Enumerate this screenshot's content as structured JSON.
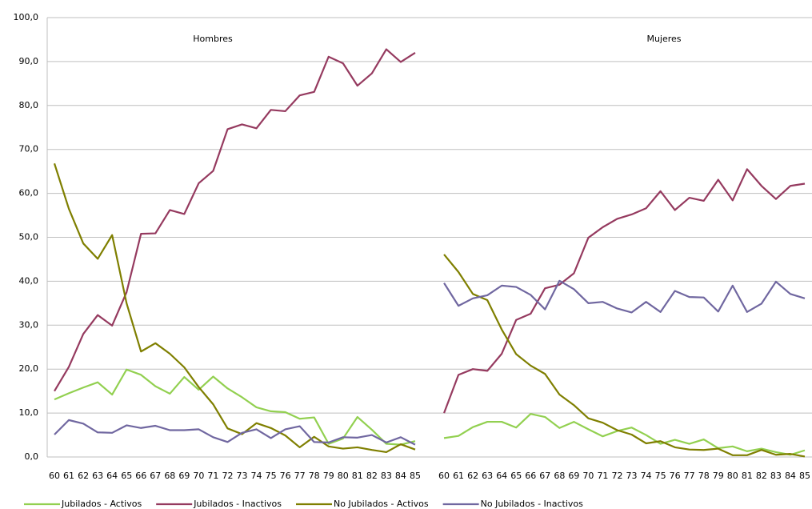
{
  "chart_data": {
    "type": "line",
    "categories": [
      "60",
      "61",
      "62",
      "63",
      "64",
      "65",
      "66",
      "67",
      "68",
      "69",
      "70",
      "71",
      "72",
      "73",
      "74",
      "75",
      "76",
      "77",
      "78",
      "79",
      "80",
      "81",
      "82",
      "83",
      "84",
      "85",
      null,
      "60",
      "61",
      "62",
      "63",
      "64",
      "65",
      "66",
      "67",
      "68",
      "69",
      "70",
      "71",
      "72",
      "73",
      "74",
      "75",
      "76",
      "77",
      "78",
      "79",
      "80",
      "81",
      "82",
      "83",
      "84",
      "85"
    ],
    "annotations": [
      "Hombres",
      "Mujeres"
    ],
    "ylim": [
      0,
      100
    ],
    "yticks": [
      {
        "value": 0,
        "label": "0,0"
      },
      {
        "value": 10,
        "label": "10,0"
      },
      {
        "value": 20,
        "label": "20,0"
      },
      {
        "value": 30,
        "label": "30,0"
      },
      {
        "value": 40,
        "label": "40,0"
      },
      {
        "value": 50,
        "label": "50,0"
      },
      {
        "value": 60,
        "label": "60,0"
      },
      {
        "value": 70,
        "label": "70,0"
      },
      {
        "value": 80,
        "label": "80,0"
      },
      {
        "value": 90,
        "label": "90,0"
      },
      {
        "value": 100,
        "label": "100,0"
      }
    ],
    "grid": true,
    "legend": "bottom",
    "series": [
      {
        "name": "Jubilados - Activos",
        "color": "#92d050",
        "values": [
          13.1,
          14.5,
          15.8,
          17,
          14.2,
          19.9,
          18.7,
          16.1,
          14.4,
          18.2,
          15.3,
          18.3,
          15.6,
          13.6,
          11.3,
          10.4,
          10.2,
          8.7,
          9,
          3,
          4.2,
          9.1,
          6.2,
          3,
          2.8,
          3.6,
          null,
          4.3,
          4.8,
          6.8,
          8,
          8,
          6.7,
          9.8,
          9.1,
          6.6,
          8,
          6.3,
          4.7,
          5.9,
          6.7,
          5,
          3,
          3.9,
          3,
          4,
          2,
          2.4,
          1.3,
          1.9,
          1.1,
          0.5,
          1.5
        ]
      },
      {
        "name": "Jubilados - Inactivos",
        "color": "#953a5f",
        "values": [
          15,
          20.5,
          28,
          32.3,
          29.9,
          37.5,
          50.8,
          50.9,
          56.2,
          55.3,
          62.3,
          65.1,
          74.6,
          75.7,
          74.8,
          79,
          78.7,
          82.3,
          83.1,
          91.1,
          89.6,
          84.5,
          87.3,
          92.8,
          89.9,
          92,
          null,
          10,
          18.7,
          20,
          19.6,
          23.5,
          31.2,
          32.6,
          38.4,
          39.2,
          41.8,
          49.9,
          52.3,
          54.2,
          55.2,
          56.6,
          60.5,
          56.2,
          59,
          58.3,
          63.1,
          58.4,
          65.5,
          61.7,
          58.7,
          61.7,
          62.2
        ]
      },
      {
        "name": "No Jubilados - Activos",
        "color": "#7f7f00",
        "values": [
          66.8,
          56.5,
          48.6,
          45.1,
          50.5,
          35,
          24,
          25.9,
          23.5,
          20.4,
          15.9,
          12,
          6.5,
          5.2,
          7.7,
          6.6,
          4.9,
          2.2,
          4.6,
          2.4,
          1.9,
          2.2,
          1.6,
          1.1,
          2.9,
          1.7,
          null,
          46.1,
          42.1,
          37.1,
          35.7,
          29,
          23.4,
          20.8,
          18.9,
          14.2,
          11.8,
          8.8,
          7.8,
          6.1,
          5.1,
          3.1,
          3.6,
          2.2,
          1.7,
          1.6,
          1.9,
          0.4,
          0.4,
          1.6,
          0.5,
          0.7,
          0.1
        ]
      },
      {
        "name": "No Jubilados - Inactivos",
        "color": "#7067a0",
        "values": [
          5.1,
          8.4,
          7.6,
          5.6,
          5.5,
          7.2,
          6.6,
          7.1,
          6.1,
          6.1,
          6.3,
          4.5,
          3.4,
          5.5,
          6.3,
          4.3,
          6.3,
          7,
          3.4,
          3.3,
          4.5,
          4.4,
          5,
          3.3,
          4.5,
          2.8,
          null,
          39.6,
          34.4,
          36.1,
          36.8,
          39,
          38.7,
          36.9,
          33.6,
          40.1,
          38.2,
          35,
          35.3,
          33.8,
          32.9,
          35.3,
          33,
          37.8,
          36.4,
          36.3,
          33.1,
          39,
          33,
          34.9,
          39.9,
          37.1,
          36.1
        ]
      }
    ]
  }
}
